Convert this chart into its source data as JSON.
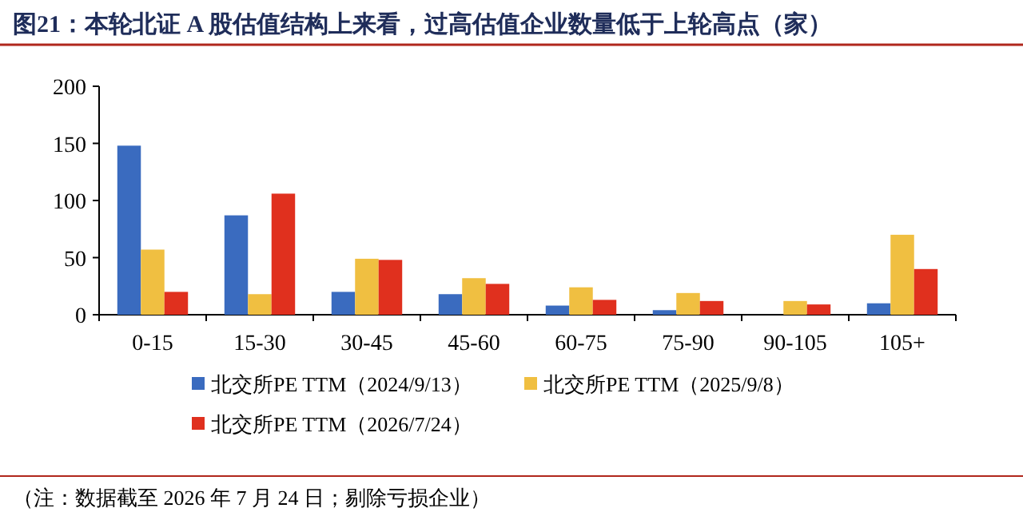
{
  "chart_data": {
    "type": "bar",
    "title": "图21：本轮北证 A 股估值结构上来看，过高估值企业数量低于上轮高点（家）",
    "categories": [
      "0-15",
      "15-30",
      "30-45",
      "45-60",
      "60-75",
      "75-90",
      "90-105",
      "105+"
    ],
    "series": [
      {
        "name": "北交所PE TTM（2024/9/13）",
        "color": "#3a6bbf",
        "values": [
          148,
          87,
          20,
          18,
          8,
          4,
          0,
          10
        ]
      },
      {
        "name": "北交所PE TTM（2025/9/8）",
        "color": "#f0bf41",
        "values": [
          57,
          18,
          49,
          32,
          24,
          19,
          12,
          70
        ]
      },
      {
        "name": "北交所PE TTM（2026/7/24）",
        "color": "#e0301e",
        "values": [
          20,
          106,
          48,
          27,
          13,
          12,
          9,
          40
        ]
      }
    ],
    "ylim": [
      0,
      200
    ],
    "yticks": [
      0,
      50,
      100,
      150,
      200
    ],
    "grid": false,
    "legend": "bottom",
    "annotations": [
      "（注：数据截至 2026 年 7 月 24 日；剔除亏损企业）"
    ]
  }
}
